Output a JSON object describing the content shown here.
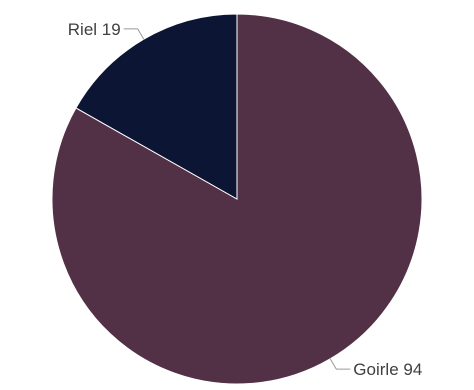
{
  "chart_data": {
    "type": "pie",
    "title": "",
    "slices": [
      {
        "label": "Goirle",
        "value": 94,
        "color": "#523046"
      },
      {
        "label": "Riel",
        "value": 19,
        "color": "#0c1533"
      }
    ],
    "start_angle_deg": 0,
    "direction": "clockwise",
    "legend": "none",
    "data_labels": "outside"
  }
}
